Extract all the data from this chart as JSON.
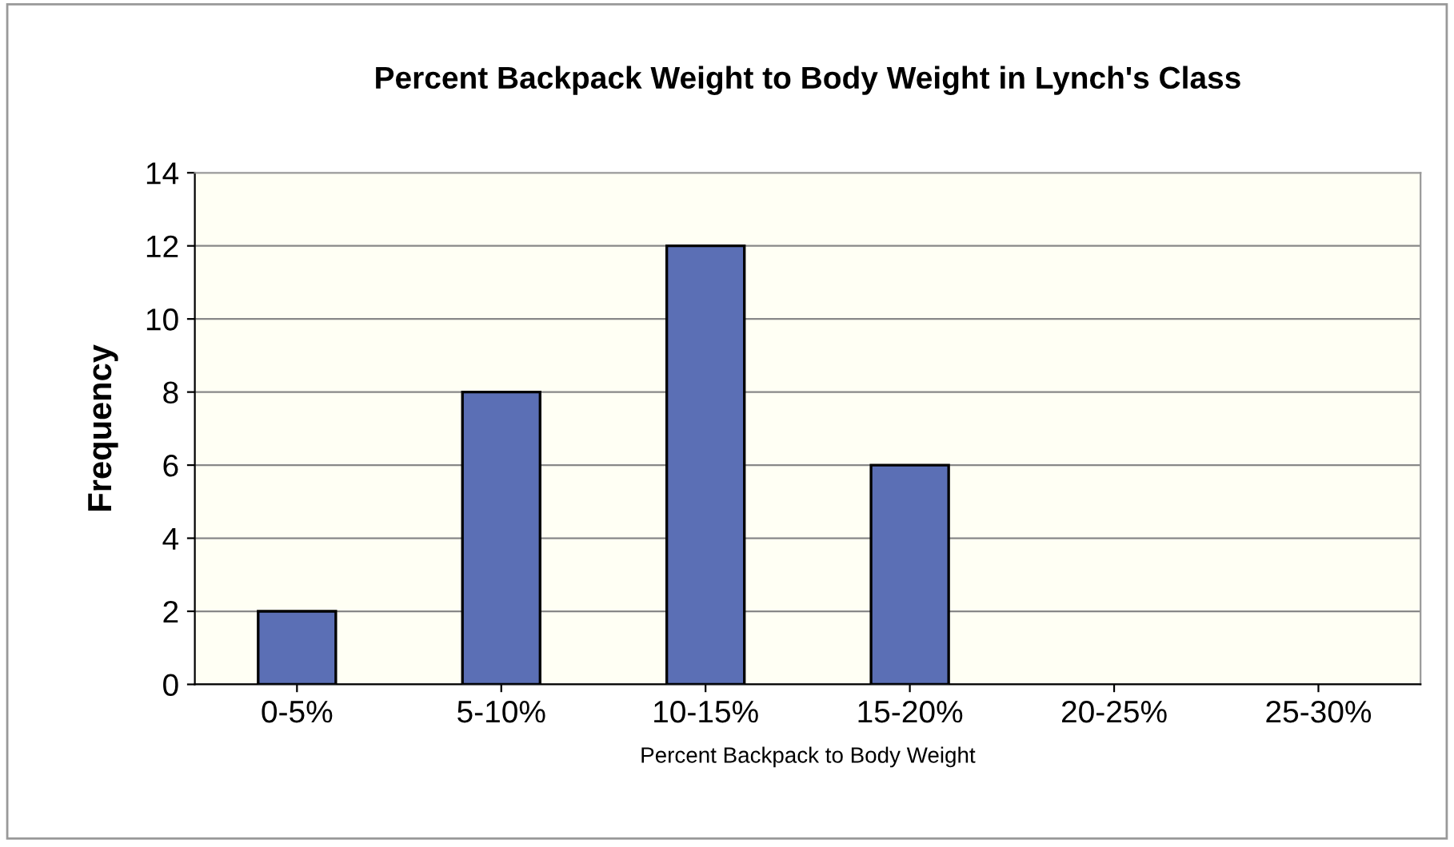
{
  "chart_data": {
    "type": "bar",
    "title": "Percent Backpack Weight to Body Weight in Lynch's Class",
    "xlabel": "Percent Backpack to Body Weight",
    "ylabel": "Frequency",
    "categories": [
      "0-5%",
      "5-10%",
      "10-15%",
      "15-20%",
      "20-25%",
      "25-30%"
    ],
    "values": [
      2,
      8,
      12,
      6,
      0,
      0
    ],
    "color": "#5b6fb5",
    "ylim": [
      0,
      14
    ],
    "yticks": [
      0,
      2,
      4,
      6,
      8,
      10,
      12,
      14
    ],
    "grid": "y",
    "legend": false
  }
}
